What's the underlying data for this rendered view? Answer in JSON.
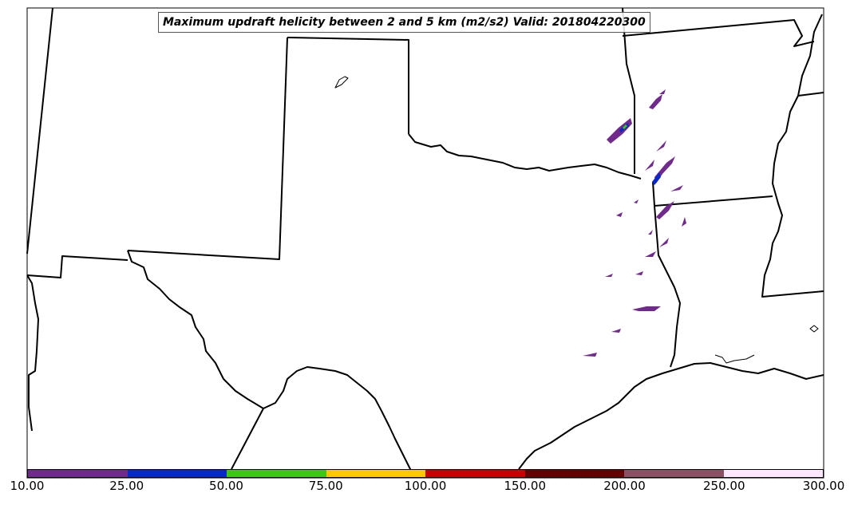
{
  "title": "Maximum updraft helicity between 2 and 5 km (m2/s2) Valid: 201804220300",
  "colorbar": {
    "ticks": [
      "10.00",
      "25.00",
      "50.00",
      "75.00",
      "100.00",
      "150.00",
      "200.00",
      "250.00",
      "300.00"
    ],
    "colors": [
      "#702a8c",
      "#0528c8",
      "#3cc814",
      "#ffc800",
      "#c80000",
      "#640000",
      "#8c5064",
      "#ffe6ff"
    ]
  }
}
